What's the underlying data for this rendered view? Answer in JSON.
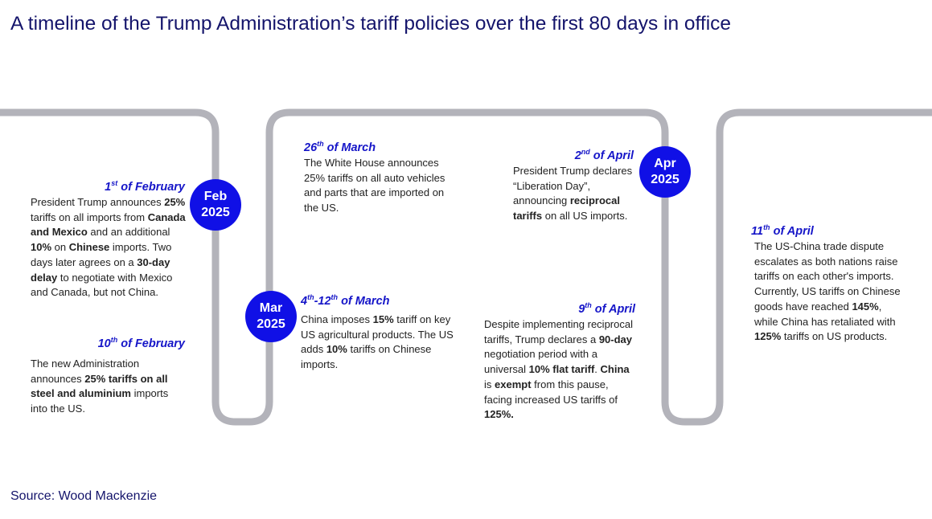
{
  "title": "A timeline of the Trump Administration’s tariff policies over the first 80 days in office",
  "milestones": [
    {
      "month": "Feb",
      "year": "2025"
    },
    {
      "month": "Mar",
      "year": "2025"
    },
    {
      "month": "Apr",
      "year": "2025"
    }
  ],
  "events": [
    {
      "date": [
        {
          "text": "1"
        },
        {
          "text": "st",
          "sup": true
        },
        {
          "text": " of February"
        }
      ],
      "body": [
        {
          "text": "President Trump announces "
        },
        {
          "text": "25%",
          "bold": true
        },
        {
          "text": " tariffs on all imports from "
        },
        {
          "text": "Canada and Mexico",
          "bold": true
        },
        {
          "text": " and an additional "
        },
        {
          "text": "10%",
          "bold": true
        },
        {
          "text": " on "
        },
        {
          "text": "Chinese",
          "bold": true
        },
        {
          "text": " imports. Two days later agrees on a "
        },
        {
          "text": "30-day delay",
          "bold": true
        },
        {
          "text": " to negotiate with Mexico and Canada, but not China."
        }
      ]
    },
    {
      "date": [
        {
          "text": "10"
        },
        {
          "text": "th",
          "sup": true
        },
        {
          "text": " of February"
        }
      ],
      "body": [
        {
          "text": "The new Administration announces "
        },
        {
          "text": "25% tariffs on all steel and aluminium",
          "bold": true
        },
        {
          "text": " imports into the US."
        }
      ]
    },
    {
      "date": [
        {
          "text": "26"
        },
        {
          "text": "th",
          "sup": true
        },
        {
          "text": " of March"
        }
      ],
      "body": [
        {
          "text": "The White House announces 25% tariffs on all auto vehicles and parts that are imported on the US."
        }
      ]
    },
    {
      "date": [
        {
          "text": "4"
        },
        {
          "text": "th",
          "sup": true
        },
        {
          "text": "-12"
        },
        {
          "text": "th",
          "sup": true
        },
        {
          "text": " of March"
        }
      ],
      "body": [
        {
          "text": "China imposes "
        },
        {
          "text": "15%",
          "bold": true
        },
        {
          "text": " tariff on key US agricultural products. The US adds "
        },
        {
          "text": "10%",
          "bold": true
        },
        {
          "text": " tariffs on Chinese imports."
        }
      ]
    },
    {
      "date": [
        {
          "text": "2"
        },
        {
          "text": "nd",
          "sup": true
        },
        {
          "text": " of April"
        }
      ],
      "body": [
        {
          "text": "President Trump declares “Liberation Day”, announcing "
        },
        {
          "text": "reciprocal tariffs",
          "bold": true
        },
        {
          "text": " on all US imports."
        }
      ]
    },
    {
      "date": [
        {
          "text": "9"
        },
        {
          "text": "th",
          "sup": true
        },
        {
          "text": " of April"
        }
      ],
      "body": [
        {
          "text": "Despite implementing reciprocal tariffs, Trump declares a "
        },
        {
          "text": "90-day",
          "bold": true
        },
        {
          "text": " negotiation period with a universal "
        },
        {
          "text": "10% flat tariff",
          "bold": true
        },
        {
          "text": ". "
        },
        {
          "text": "China",
          "bold": true
        },
        {
          "text": " is "
        },
        {
          "text": "exempt",
          "bold": true
        },
        {
          "text": " from this pause, facing increased US tariffs of "
        },
        {
          "text": "125%.",
          "bold": true
        }
      ]
    },
    {
      "date": [
        {
          "text": "11"
        },
        {
          "text": "th",
          "sup": true
        },
        {
          "text": " of April"
        }
      ],
      "body": [
        {
          "text": "The US-China trade dispute escalates as both nations raise tariffs on each other's imports. Currently, US tariffs on Chinese goods have reached "
        },
        {
          "text": "145%",
          "bold": true
        },
        {
          "text": ", while China has retaliated with "
        },
        {
          "text": "125%",
          "bold": true
        },
        {
          "text": " tariffs on US products."
        }
      ]
    }
  ],
  "source": "Source: Wood Mackenzie"
}
